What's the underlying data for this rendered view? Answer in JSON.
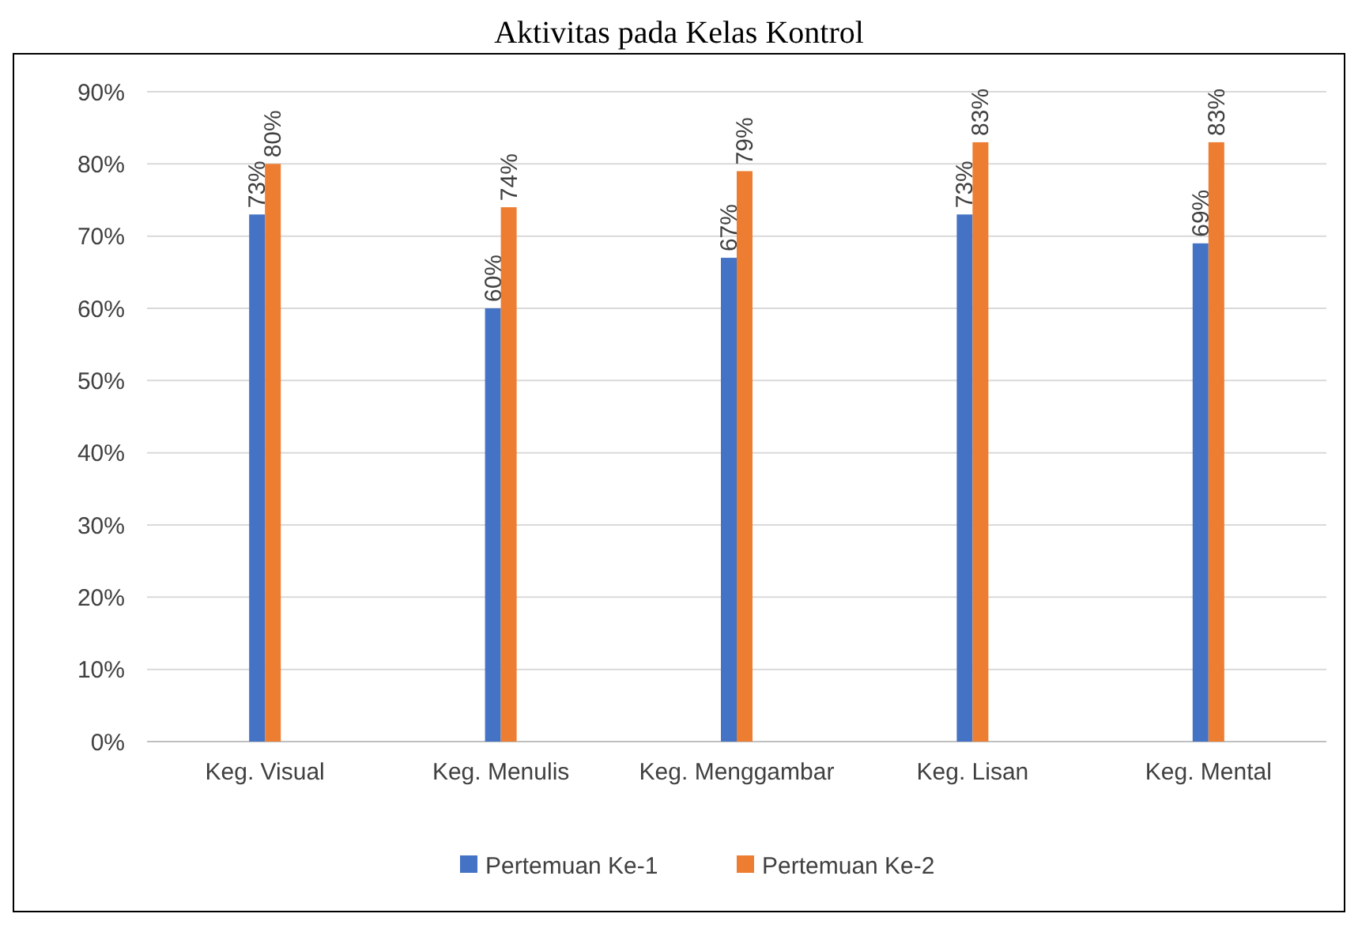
{
  "chart_data": {
    "type": "bar",
    "title": "Aktivitas pada Kelas Kontrol",
    "categories": [
      "Keg. Visual",
      "Keg. Menulis",
      "Keg. Menggambar",
      "Keg. Lisan",
      "Keg. Mental"
    ],
    "series": [
      {
        "name": "Pertemuan Ke-1",
        "color": "#4472c4",
        "values": [
          73,
          60,
          67,
          73,
          69
        ],
        "value_labels": [
          "73%",
          "60%",
          "67%",
          "73%",
          "69%"
        ]
      },
      {
        "name": "Pertemuan Ke-2",
        "color": "#ed7d31",
        "values": [
          80,
          74,
          79,
          83,
          83
        ],
        "value_labels": [
          "80%",
          "74%",
          "79%",
          "83%",
          "83%"
        ]
      }
    ],
    "ylim": [
      0,
      90
    ],
    "yticks": [
      {
        "value": 0,
        "label": "0%"
      },
      {
        "value": 10,
        "label": "10%"
      },
      {
        "value": 20,
        "label": "20%"
      },
      {
        "value": 30,
        "label": "30%"
      },
      {
        "value": 40,
        "label": "40%"
      },
      {
        "value": 50,
        "label": "50%"
      },
      {
        "value": 60,
        "label": "60%"
      },
      {
        "value": 70,
        "label": "70%"
      },
      {
        "value": 80,
        "label": "80%"
      },
      {
        "value": 90,
        "label": "90%"
      }
    ],
    "grid": "y",
    "legend": "bottom"
  }
}
